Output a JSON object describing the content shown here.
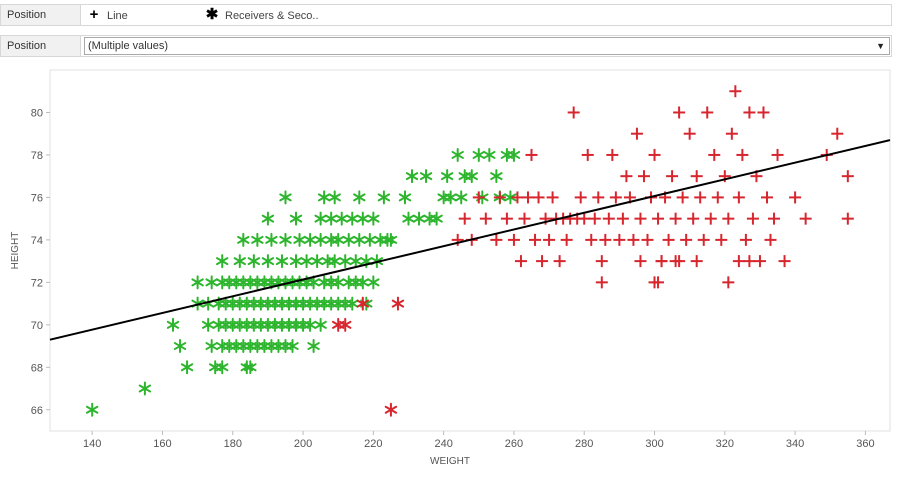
{
  "shape_filter": {
    "label": "Position",
    "items": [
      {
        "symbol": "+",
        "label": "Line",
        "icon": "plus-icon"
      },
      {
        "symbol": "✱",
        "label": "Receivers & Seco..",
        "icon": "asterisk-icon"
      }
    ]
  },
  "position_filter": {
    "label": "Position",
    "selected_value": "(Multiple values)"
  },
  "colors": {
    "green": "#2db52d",
    "red": "#d7262e",
    "trend": "#000000"
  },
  "chart_data": {
    "type": "scatter",
    "xlabel": "WEIGHT",
    "ylabel": "HEIGHT",
    "xlim": [
      128,
      367
    ],
    "ylim": [
      65,
      82
    ],
    "x_ticks": [
      140,
      160,
      180,
      200,
      220,
      240,
      260,
      280,
      300,
      320,
      340,
      360
    ],
    "y_ticks": [
      66,
      68,
      70,
      72,
      74,
      76,
      78,
      80
    ],
    "grid": false,
    "trend_line": {
      "x": [
        128,
        367
      ],
      "y": [
        69.3,
        78.7
      ]
    },
    "series": [
      {
        "name": "Receivers & Seco..",
        "shape": "asterisk",
        "color": "green",
        "points": [
          [
            140,
            66
          ],
          [
            155,
            67
          ],
          [
            163,
            70
          ],
          [
            165,
            69
          ],
          [
            167,
            68
          ],
          [
            170,
            71
          ],
          [
            170,
            72
          ],
          [
            173,
            70
          ],
          [
            173,
            71
          ],
          [
            174,
            69
          ],
          [
            174,
            72
          ],
          [
            175,
            68
          ],
          [
            176,
            70
          ],
          [
            176,
            71
          ],
          [
            177,
            68
          ],
          [
            177,
            69
          ],
          [
            177,
            72
          ],
          [
            177,
            73
          ],
          [
            178,
            70
          ],
          [
            178,
            71
          ],
          [
            179,
            69
          ],
          [
            179,
            72
          ],
          [
            180,
            70
          ],
          [
            180,
            71
          ],
          [
            181,
            69
          ],
          [
            181,
            72
          ],
          [
            182,
            70
          ],
          [
            182,
            71
          ],
          [
            182,
            73
          ],
          [
            183,
            69
          ],
          [
            183,
            72
          ],
          [
            183,
            74
          ],
          [
            184,
            68
          ],
          [
            184,
            70
          ],
          [
            184,
            71
          ],
          [
            185,
            68
          ],
          [
            185,
            69
          ],
          [
            185,
            72
          ],
          [
            186,
            70
          ],
          [
            186,
            71
          ],
          [
            186,
            73
          ],
          [
            187,
            69
          ],
          [
            187,
            72
          ],
          [
            187,
            74
          ],
          [
            188,
            70
          ],
          [
            188,
            71
          ],
          [
            189,
            69
          ],
          [
            189,
            72
          ],
          [
            190,
            70
          ],
          [
            190,
            71
          ],
          [
            190,
            73
          ],
          [
            190,
            75
          ],
          [
            191,
            69
          ],
          [
            191,
            72
          ],
          [
            191,
            74
          ],
          [
            192,
            70
          ],
          [
            192,
            71
          ],
          [
            193,
            69
          ],
          [
            193,
            72
          ],
          [
            194,
            70
          ],
          [
            194,
            71
          ],
          [
            194,
            73
          ],
          [
            195,
            69
          ],
          [
            195,
            72
          ],
          [
            195,
            74
          ],
          [
            195,
            76
          ],
          [
            196,
            70
          ],
          [
            196,
            71
          ],
          [
            197,
            69
          ],
          [
            197,
            72
          ],
          [
            198,
            70
          ],
          [
            198,
            71
          ],
          [
            198,
            73
          ],
          [
            198,
            75
          ],
          [
            199,
            72
          ],
          [
            199,
            74
          ],
          [
            200,
            70
          ],
          [
            200,
            71
          ],
          [
            201,
            72
          ],
          [
            201,
            73
          ],
          [
            202,
            70
          ],
          [
            202,
            71
          ],
          [
            202,
            74
          ],
          [
            203,
            69
          ],
          [
            203,
            72
          ],
          [
            204,
            71
          ],
          [
            204,
            73
          ],
          [
            205,
            70
          ],
          [
            205,
            74
          ],
          [
            205,
            75
          ],
          [
            206,
            71
          ],
          [
            206,
            72
          ],
          [
            206,
            76
          ],
          [
            207,
            73
          ],
          [
            208,
            71
          ],
          [
            208,
            72
          ],
          [
            208,
            74
          ],
          [
            208,
            75
          ],
          [
            209,
            73
          ],
          [
            209,
            76
          ],
          [
            210,
            71
          ],
          [
            210,
            72
          ],
          [
            210,
            74
          ],
          [
            211,
            75
          ],
          [
            212,
            71
          ],
          [
            212,
            73
          ],
          [
            213,
            72
          ],
          [
            213,
            74
          ],
          [
            214,
            71
          ],
          [
            214,
            75
          ],
          [
            215,
            72
          ],
          [
            215,
            73
          ],
          [
            216,
            74
          ],
          [
            216,
            76
          ],
          [
            217,
            72
          ],
          [
            217,
            75
          ],
          [
            218,
            71
          ],
          [
            218,
            73
          ],
          [
            219,
            74
          ],
          [
            220,
            72
          ],
          [
            220,
            75
          ],
          [
            221,
            73
          ],
          [
            222,
            74
          ],
          [
            223,
            76
          ],
          [
            224,
            74
          ],
          [
            225,
            74
          ],
          [
            229,
            76
          ],
          [
            230,
            75
          ],
          [
            231,
            77
          ],
          [
            233,
            75
          ],
          [
            235,
            77
          ],
          [
            236,
            75
          ],
          [
            238,
            75
          ],
          [
            240,
            76
          ],
          [
            241,
            77
          ],
          [
            242,
            76
          ],
          [
            244,
            78
          ],
          [
            245,
            76
          ],
          [
            246,
            77
          ],
          [
            248,
            77
          ],
          [
            250,
            78
          ],
          [
            251,
            76
          ],
          [
            253,
            78
          ],
          [
            255,
            77
          ],
          [
            256,
            76
          ],
          [
            258,
            78
          ],
          [
            259,
            76
          ],
          [
            260,
            78
          ]
        ]
      },
      {
        "name": "Receivers & Seco..",
        "shape": "asterisk",
        "color": "red",
        "points": [
          [
            210,
            70
          ],
          [
            212,
            70
          ],
          [
            217,
            71
          ],
          [
            227,
            71
          ],
          [
            225,
            66
          ]
        ]
      },
      {
        "name": "Line",
        "shape": "plus",
        "color": "red",
        "points": [
          [
            244,
            74
          ],
          [
            246,
            75
          ],
          [
            248,
            74
          ],
          [
            250,
            76
          ],
          [
            252,
            75
          ],
          [
            255,
            74
          ],
          [
            256,
            76
          ],
          [
            258,
            75
          ],
          [
            260,
            74
          ],
          [
            261,
            76
          ],
          [
            262,
            73
          ],
          [
            263,
            75
          ],
          [
            264,
            76
          ],
          [
            265,
            78
          ],
          [
            266,
            74
          ],
          [
            267,
            76
          ],
          [
            268,
            73
          ],
          [
            269,
            75
          ],
          [
            270,
            74
          ],
          [
            271,
            76
          ],
          [
            272,
            75
          ],
          [
            273,
            73
          ],
          [
            274,
            75
          ],
          [
            275,
            74
          ],
          [
            276,
            75
          ],
          [
            277,
            80
          ],
          [
            278,
            75
          ],
          [
            279,
            76
          ],
          [
            280,
            75
          ],
          [
            281,
            78
          ],
          [
            282,
            74
          ],
          [
            283,
            75
          ],
          [
            284,
            76
          ],
          [
            285,
            72
          ],
          [
            285,
            73
          ],
          [
            286,
            74
          ],
          [
            287,
            75
          ],
          [
            288,
            78
          ],
          [
            289,
            76
          ],
          [
            290,
            74
          ],
          [
            291,
            75
          ],
          [
            292,
            77
          ],
          [
            293,
            76
          ],
          [
            294,
            74
          ],
          [
            295,
            79
          ],
          [
            296,
            75
          ],
          [
            297,
            77
          ],
          [
            298,
            74
          ],
          [
            299,
            76
          ],
          [
            300,
            78
          ],
          [
            301,
            75
          ],
          [
            302,
            73
          ],
          [
            303,
            76
          ],
          [
            304,
            74
          ],
          [
            305,
            77
          ],
          [
            306,
            75
          ],
          [
            307,
            80
          ],
          [
            308,
            76
          ],
          [
            309,
            74
          ],
          [
            310,
            79
          ],
          [
            311,
            75
          ],
          [
            312,
            77
          ],
          [
            313,
            76
          ],
          [
            314,
            74
          ],
          [
            315,
            80
          ],
          [
            316,
            75
          ],
          [
            317,
            78
          ],
          [
            318,
            76
          ],
          [
            319,
            74
          ],
          [
            320,
            77
          ],
          [
            321,
            75
          ],
          [
            322,
            79
          ],
          [
            323,
            81
          ],
          [
            324,
            76
          ],
          [
            325,
            78
          ],
          [
            326,
            74
          ],
          [
            327,
            80
          ],
          [
            328,
            75
          ],
          [
            329,
            77
          ],
          [
            330,
            73
          ],
          [
            331,
            80
          ],
          [
            332,
            76
          ],
          [
            333,
            74
          ],
          [
            334,
            75
          ],
          [
            335,
            78
          ],
          [
            337,
            73
          ],
          [
            340,
            76
          ],
          [
            343,
            75
          ],
          [
            349,
            78
          ],
          [
            352,
            79
          ],
          [
            355,
            77
          ],
          [
            355,
            75
          ],
          [
            300,
            72
          ],
          [
            301,
            72
          ],
          [
            321,
            72
          ],
          [
            324,
            73
          ],
          [
            327,
            73
          ],
          [
            302,
            73
          ],
          [
            296,
            73
          ],
          [
            307,
            73
          ],
          [
            312,
            73
          ],
          [
            306,
            73
          ]
        ]
      }
    ]
  }
}
